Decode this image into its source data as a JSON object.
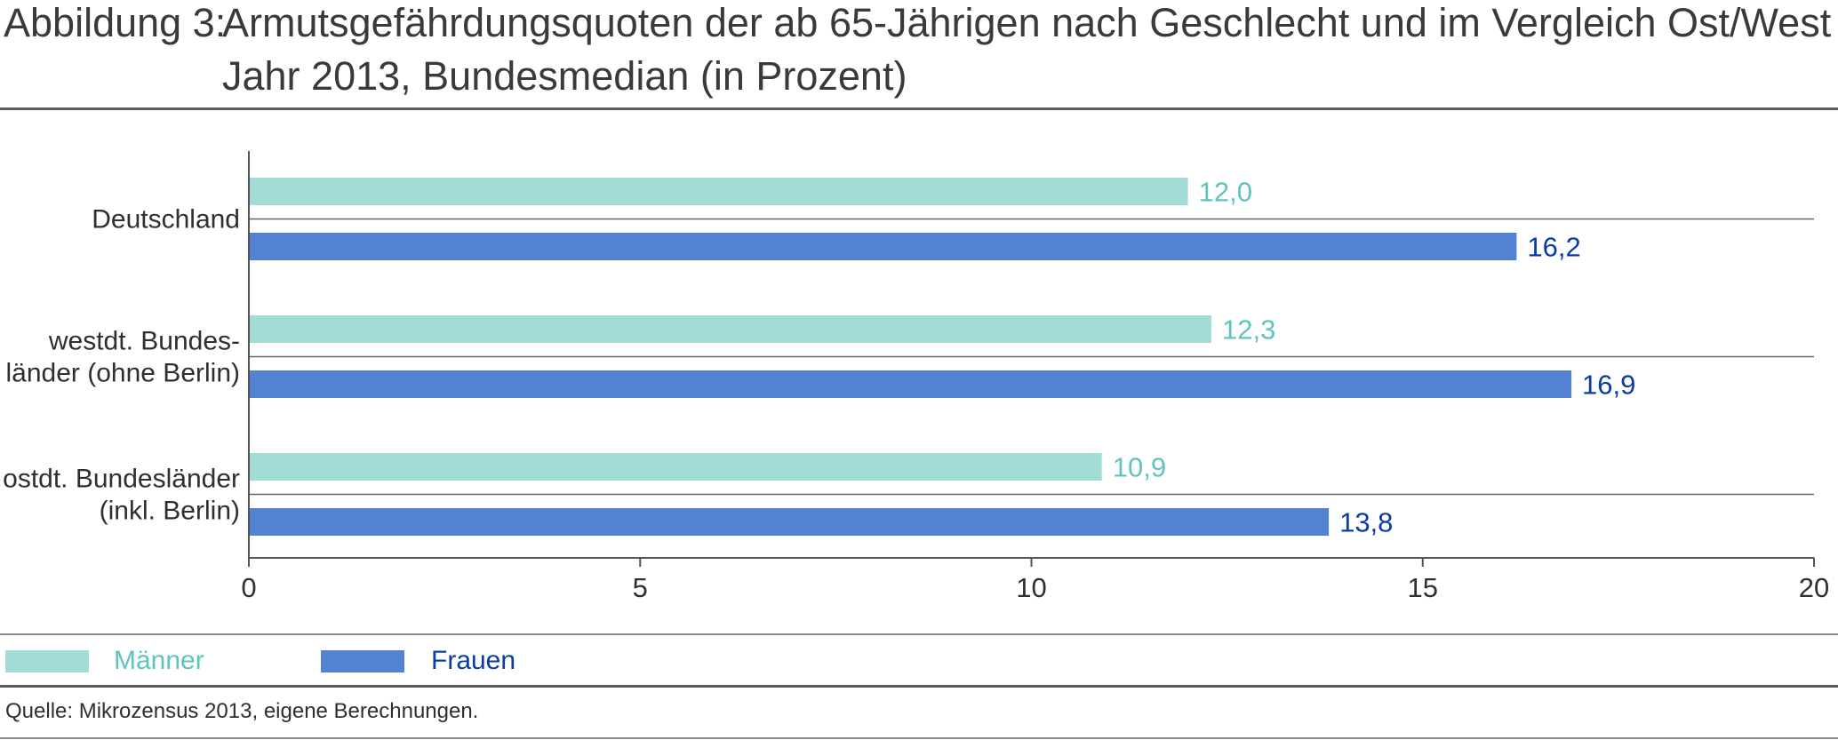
{
  "title": {
    "prefix": "Abbildung 3:",
    "line1": "Armutsgefährdungsquoten der ab 65-Jährigen nach Geschlecht und im Vergleich Ost/West im",
    "line2": "Jahr 2013, Bundesmedian (in Prozent)"
  },
  "legend": {
    "men_label": "Männer",
    "women_label": "Frauen"
  },
  "source": "Quelle: Mikrozensus 2013, eigene Berechnungen.",
  "colors": {
    "men": "#a3dcd7",
    "women": "#5482d2",
    "men_text": "#5fc4bf",
    "women_text": "#0a3ca5",
    "axis": "#555555",
    "separator": "#666666"
  },
  "chart_data": {
    "type": "bar",
    "orientation": "horizontal",
    "categories": [
      [
        "Deutschland"
      ],
      [
        "westdt. Bundes-",
        "länder (ohne Berlin)"
      ],
      [
        "ostdt. Bundesländer",
        "(inkl. Berlin)"
      ]
    ],
    "series": [
      {
        "name": "Männer",
        "values": [
          12.0,
          12.3,
          10.9
        ],
        "labels": [
          "12,0",
          "12,3",
          "10,9"
        ]
      },
      {
        "name": "Frauen",
        "values": [
          16.2,
          16.9,
          13.8
        ],
        "labels": [
          "16,2",
          "16,9",
          "13,8"
        ]
      }
    ],
    "xlim": [
      0,
      20
    ],
    "xticks": [
      0,
      5,
      10,
      15,
      20
    ],
    "xtick_labels": [
      "0",
      "5",
      "10",
      "15",
      "20"
    ],
    "grid": false,
    "legend_position": "bottom-left"
  }
}
